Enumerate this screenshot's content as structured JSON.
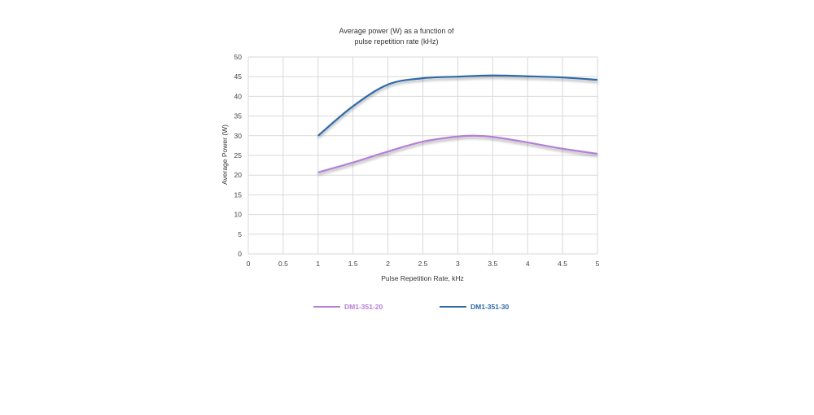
{
  "chart_data": {
    "type": "line",
    "title": [
      "Average power (W) as a function of",
      "pulse repetition rate (kHz)"
    ],
    "xlabel": "Pulse Repetition Rate, kHz",
    "ylabel": "Average Power (W)",
    "xlim": [
      0,
      5
    ],
    "ylim": [
      0,
      50
    ],
    "x_ticks": [
      "0",
      "0.5",
      "1",
      "1.5",
      "2",
      "2.5",
      "3",
      "3.5",
      "4",
      "4.5",
      "5"
    ],
    "y_ticks": [
      "0",
      "5",
      "10",
      "15",
      "20",
      "25",
      "30",
      "35",
      "40",
      "45",
      "50"
    ],
    "grid": true,
    "legend_position": "bottom",
    "series": [
      {
        "name": "DM1-351-20",
        "color": "#b57fd6",
        "x": [
          1,
          1.5,
          2,
          2.5,
          3,
          3.25,
          3.5,
          4,
          4.5,
          5
        ],
        "y": [
          20.7,
          23.2,
          26.0,
          28.5,
          29.8,
          30.0,
          29.7,
          28.3,
          26.7,
          25.4
        ]
      },
      {
        "name": "DM1-351-30",
        "color": "#2e6aa8",
        "x": [
          1,
          1.5,
          2,
          2.5,
          3,
          3.5,
          4,
          4.5,
          5
        ],
        "y": [
          30.0,
          37.5,
          43.0,
          44.6,
          45.0,
          45.3,
          45.1,
          44.8,
          44.2
        ]
      }
    ]
  }
}
